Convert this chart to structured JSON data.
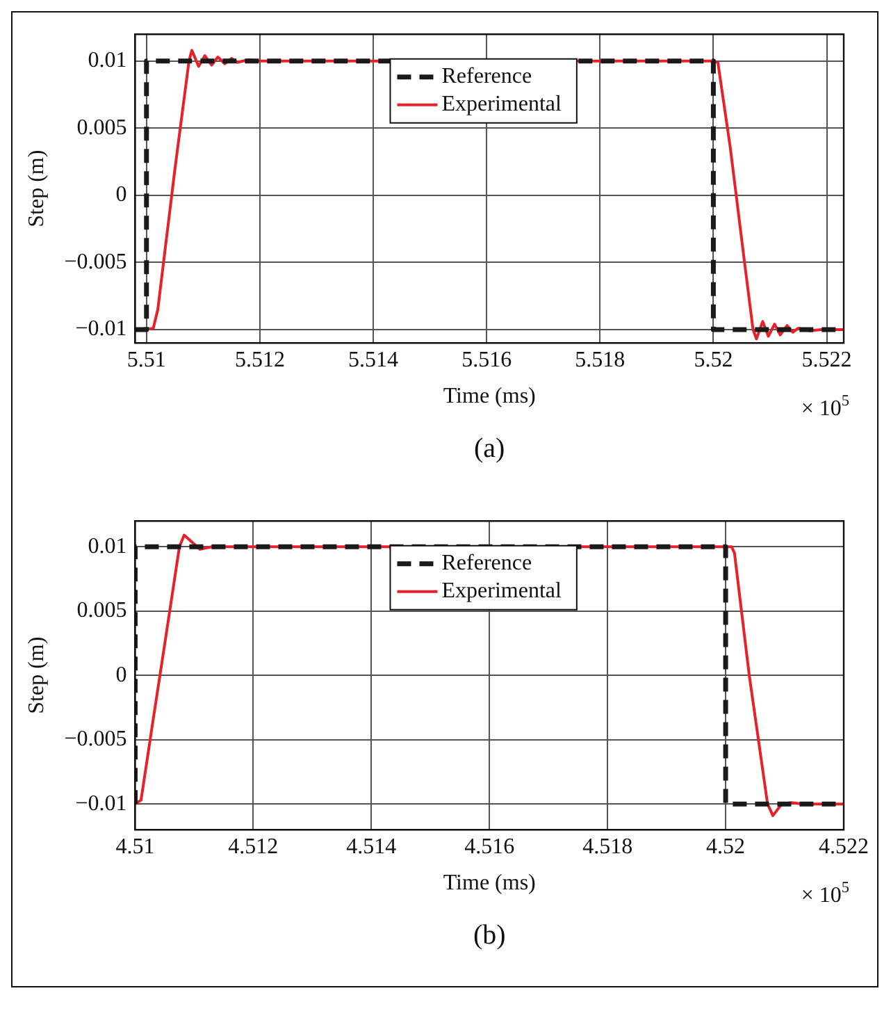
{
  "chart_data": [
    {
      "type": "line",
      "xlabel": "Time (ms)",
      "ylabel": "Step (m)",
      "xlim": [
        5.5098,
        5.5223
      ],
      "ylim": [
        -0.011,
        0.012
      ],
      "xticks": [
        5.51,
        5.512,
        5.514,
        5.516,
        5.518,
        5.52,
        5.522
      ],
      "yticks": [
        -0.01,
        -0.005,
        0,
        0.005,
        0.01
      ],
      "grid": true,
      "legend": "top",
      "marker": "none",
      "annotations": [
        "× 10$^{5}$",
        "(a)"
      ],
      "series": [
        {
          "name": "Reference",
          "color": "#1a1a1a",
          "line_style": "dashed",
          "x": [
            5.5098,
            5.51,
            5.51,
            5.52,
            5.52,
            5.5223
          ],
          "values": [
            -0.01,
            -0.01,
            0.01,
            0.01,
            -0.01,
            -0.01
          ]
        },
        {
          "name": "Experimental",
          "color": "#e8202a",
          "line_style": "solid",
          "x": [
            5.5098,
            5.51,
            5.51012,
            5.5102,
            5.5105,
            5.51075,
            5.5108,
            5.51092,
            5.51103,
            5.51115,
            5.51126,
            5.51138,
            5.5115,
            5.5116,
            5.5118,
            5.512,
            5.52,
            5.52008,
            5.5203,
            5.52055,
            5.5207,
            5.52076,
            5.52087,
            5.52097,
            5.52108,
            5.52118,
            5.5213,
            5.5214,
            5.5215,
            5.5217,
            5.5219,
            5.5223
          ],
          "values": [
            -0.01,
            -0.01,
            -0.0099,
            -0.0085,
            0.0019,
            0.01,
            0.0108,
            0.0096,
            0.0104,
            0.0097,
            0.0103,
            0.0098,
            0.0102,
            0.0099,
            0.0101,
            0.01,
            0.01,
            0.0099,
            0.0035,
            -0.005,
            -0.01,
            -0.0107,
            -0.0094,
            -0.0105,
            -0.0096,
            -0.0104,
            -0.0097,
            -0.0102,
            -0.0099,
            -0.0101,
            -0.01,
            -0.01
          ]
        }
      ]
    },
    {
      "type": "line",
      "xlabel": "Time (ms)",
      "ylabel": "Step (m)",
      "xlim": [
        4.51,
        4.522
      ],
      "ylim": [
        -0.012,
        0.012
      ],
      "xticks": [
        4.51,
        4.512,
        4.514,
        4.516,
        4.518,
        4.52,
        4.522
      ],
      "yticks": [
        -0.01,
        -0.005,
        0,
        0.005,
        0.01
      ],
      "grid": true,
      "legend": "top",
      "marker": "none",
      "annotations": [
        "× 10$^{5}$",
        "(b)"
      ],
      "series": [
        {
          "name": "Reference",
          "color": "#1a1a1a",
          "line_style": "dashed",
          "x": [
            4.51,
            4.51,
            4.52,
            4.52,
            4.522
          ],
          "values": [
            -0.01,
            0.01,
            0.01,
            -0.01,
            -0.01
          ]
        },
        {
          "name": "Experimental",
          "color": "#e8202a",
          "line_style": "solid",
          "x": [
            4.51,
            4.5101,
            4.5103,
            4.5105,
            4.51075,
            4.51083,
            4.5111,
            4.5113,
            4.5201,
            4.52015,
            4.5204,
            4.52071,
            4.5208,
            4.52095,
            4.52112,
            4.5213,
            4.522
          ],
          "values": [
            -0.01,
            -0.0097,
            -0.0036,
            0.0024,
            0.01,
            0.0109,
            0.0098,
            0.01,
            0.01,
            0.0095,
            0.0,
            -0.01,
            -0.0109,
            -0.01,
            -0.0099,
            -0.01,
            -0.01
          ]
        }
      ]
    }
  ]
}
